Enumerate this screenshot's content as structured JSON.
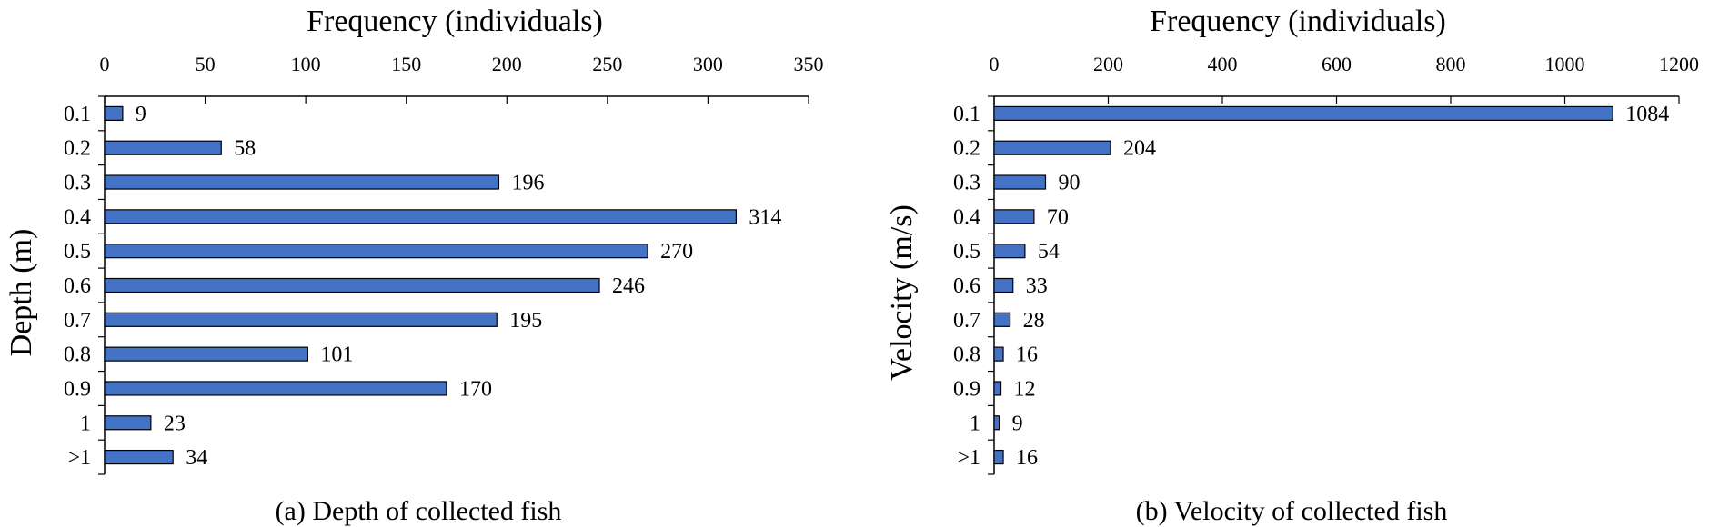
{
  "chart_data": [
    {
      "type": "bar",
      "orientation": "horizontal",
      "title": "Frequency (individuals)",
      "caption": "(a) Depth of collected fish",
      "xlabel": "Frequency (individuals)",
      "ylabel": "Depth (m)",
      "categories": [
        "0.1",
        "0.2",
        "0.3",
        "0.4",
        "0.5",
        "0.6",
        "0.7",
        "0.8",
        "0.9",
        "1",
        ">1"
      ],
      "values": [
        9,
        58,
        196,
        314,
        270,
        246,
        195,
        101,
        170,
        23,
        34
      ],
      "xlim": [
        0,
        350
      ],
      "xticks": [
        0,
        50,
        100,
        150,
        200,
        250,
        300,
        350
      ],
      "x_axis_position": "top",
      "grid": false,
      "legend": "none",
      "bar_color": "#4472C4"
    },
    {
      "type": "bar",
      "orientation": "horizontal",
      "title": "Frequency (individuals)",
      "caption": "(b) Velocity of collected fish",
      "xlabel": "Frequency (individuals)",
      "ylabel": "Velocity (m/s)",
      "categories": [
        "0.1",
        "0.2",
        "0.3",
        "0.4",
        "0.5",
        "0.6",
        "0.7",
        "0.8",
        "0.9",
        "1",
        ">1"
      ],
      "values": [
        1084,
        204,
        90,
        70,
        54,
        33,
        28,
        16,
        12,
        9,
        16
      ],
      "xlim": [
        0,
        1200
      ],
      "xticks": [
        0,
        200,
        400,
        600,
        800,
        1000,
        1200
      ],
      "x_axis_position": "top",
      "grid": false,
      "legend": "none",
      "bar_color": "#4472C4"
    }
  ]
}
